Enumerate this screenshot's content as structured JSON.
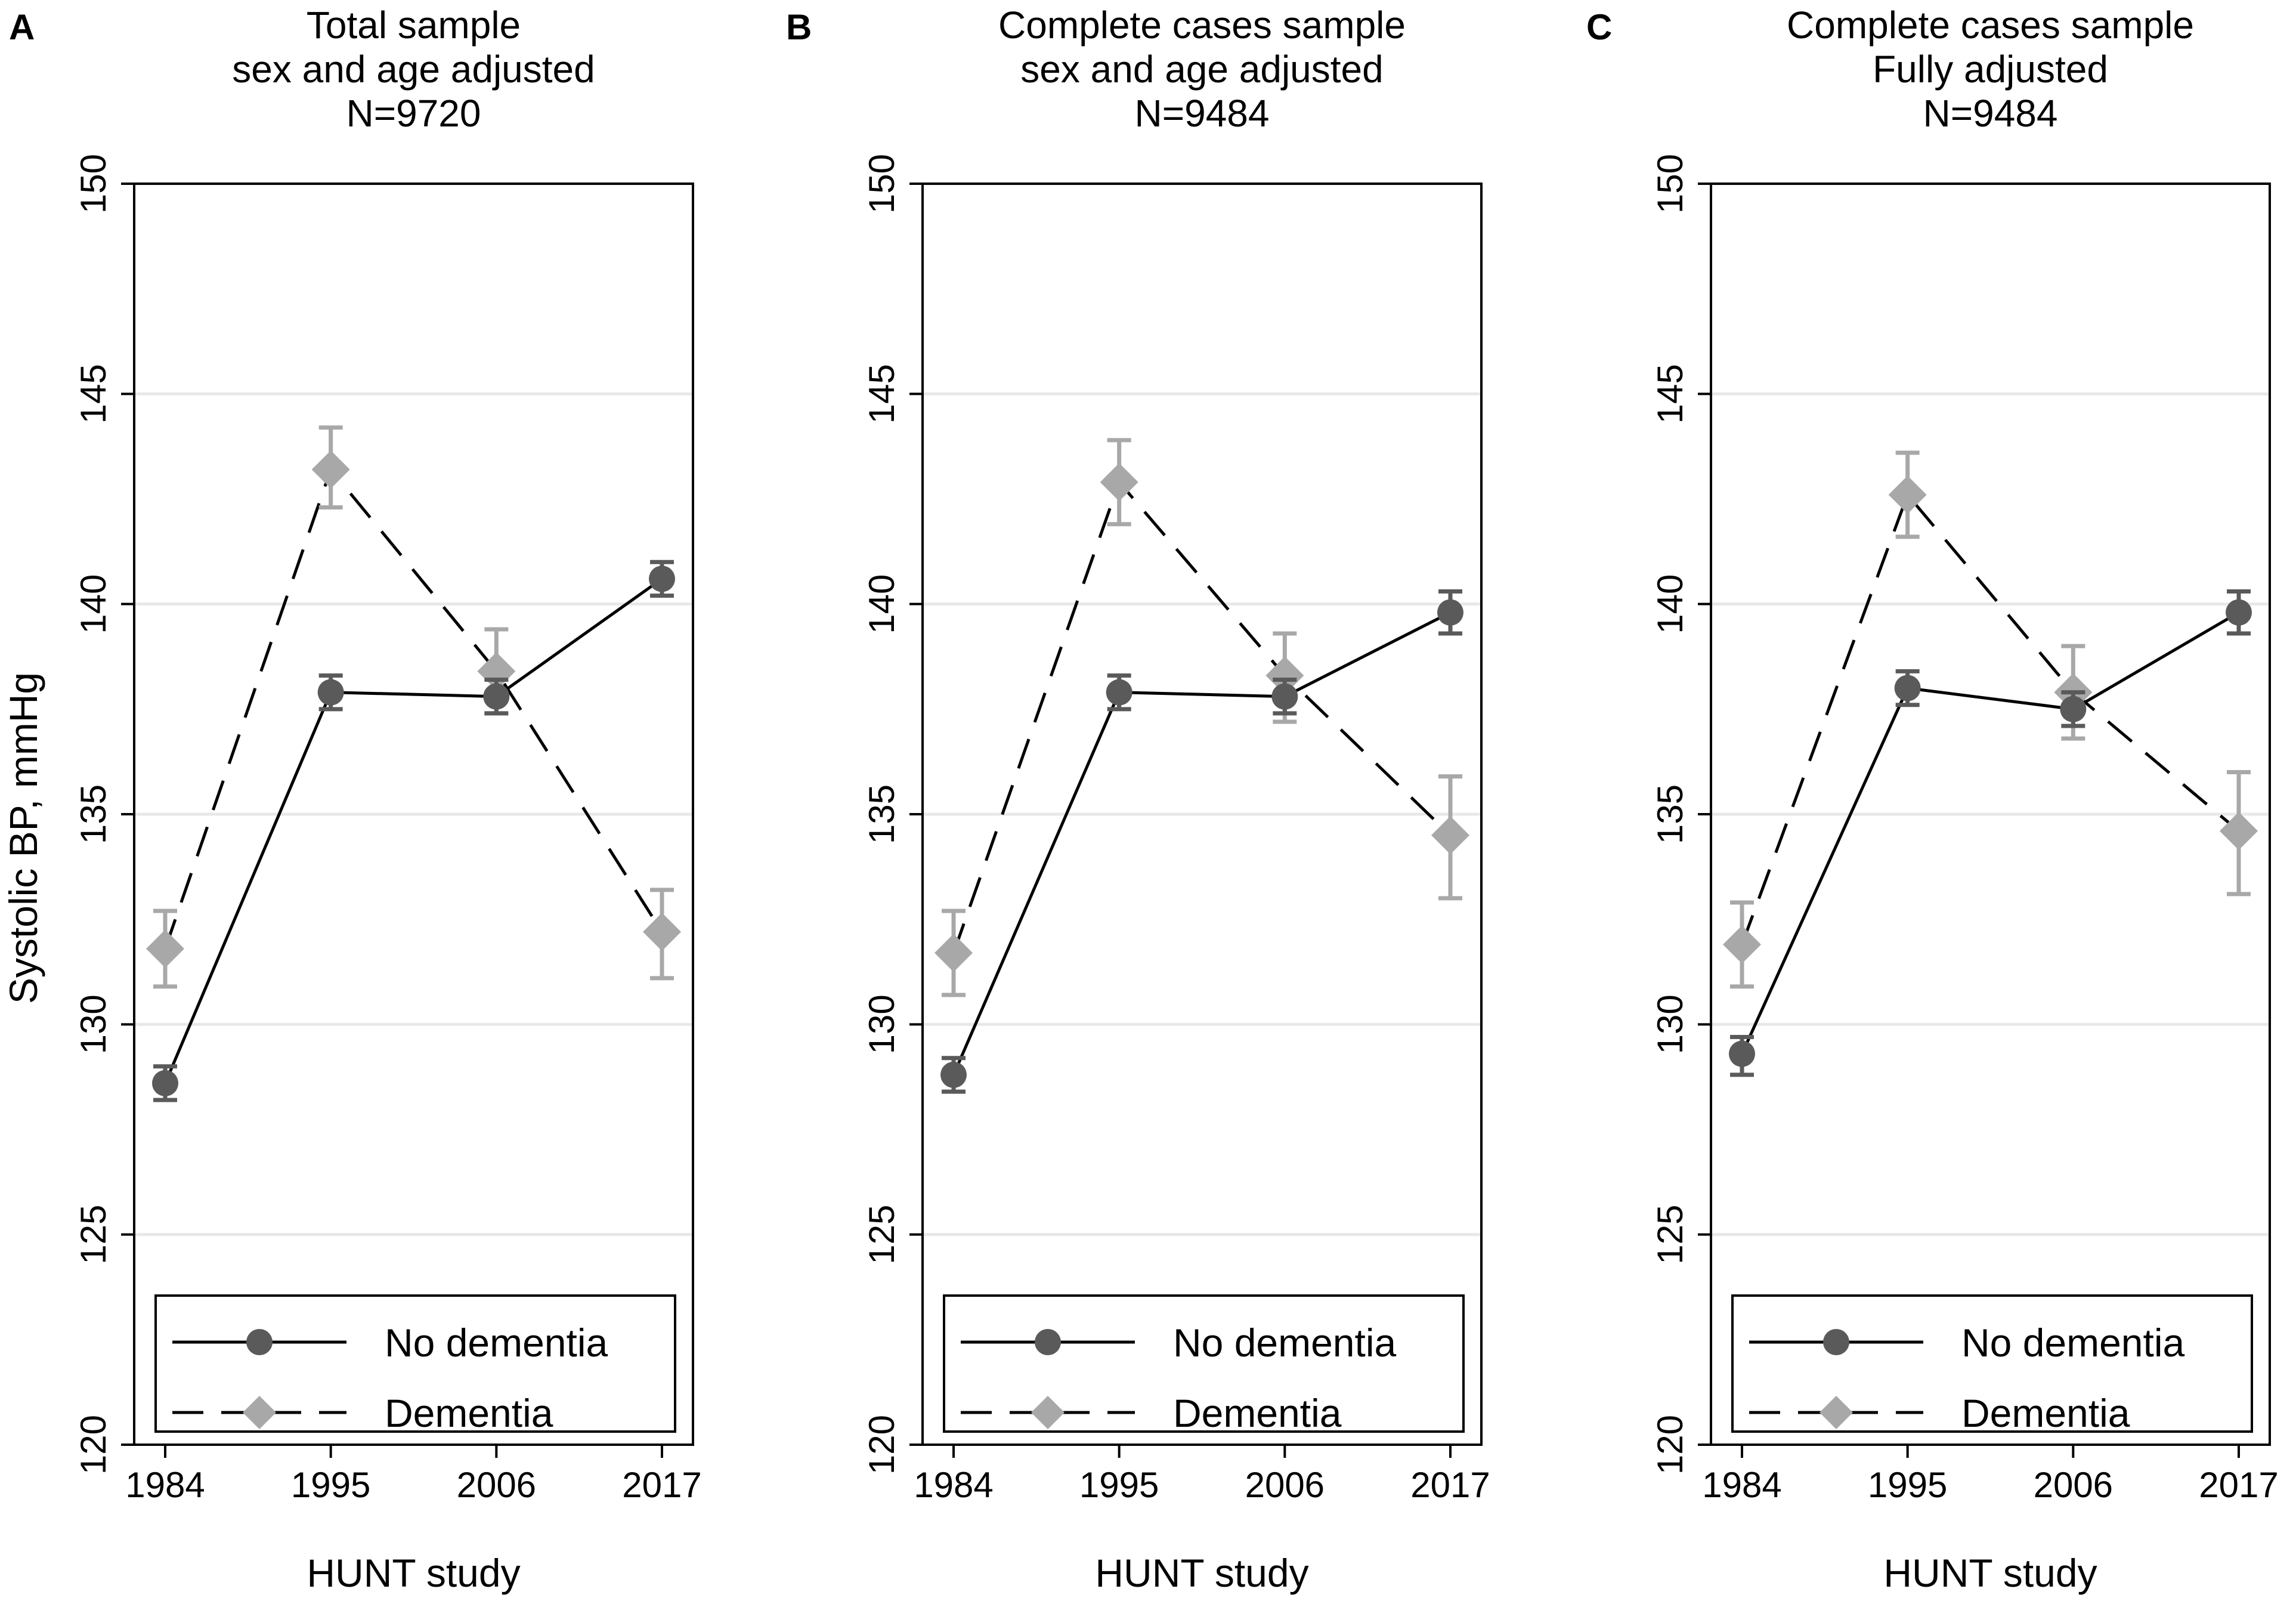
{
  "colors": {
    "no_dementia": "#5a5a5a",
    "dementia": "#a8a8a8",
    "gridline": "#e8e8e8",
    "frame": "#000000",
    "background": "#ffffff"
  },
  "chart_data": [
    {
      "type": "line",
      "panel_label": "A",
      "title": [
        "Total sample",
        "sex and age adjusted",
        "N=9720"
      ],
      "xlabel": "HUNT study",
      "ylabel": "Systolic BP, mmHg",
      "categories": [
        "1984",
        "1995",
        "2006",
        "2017"
      ],
      "ylim": [
        120,
        150
      ],
      "yticks": [
        "120",
        "125",
        "130",
        "135",
        "140",
        "145",
        "150"
      ],
      "grid": true,
      "legend": {
        "position": "bottom",
        "entries": [
          "No dementia",
          "Dementia"
        ]
      },
      "series": [
        {
          "name": "No dementia",
          "marker": "circle",
          "line": "solid",
          "values": [
            128.6,
            137.9,
            137.8,
            140.6
          ],
          "lower": [
            128.2,
            137.5,
            137.4,
            140.2
          ],
          "upper": [
            129.0,
            138.3,
            138.2,
            141.0
          ]
        },
        {
          "name": "Dementia",
          "marker": "diamond",
          "line": "dashed",
          "values": [
            131.8,
            143.2,
            138.4,
            132.2
          ],
          "lower": [
            130.9,
            142.3,
            137.4,
            131.1
          ],
          "upper": [
            132.7,
            144.2,
            139.4,
            133.2
          ]
        }
      ]
    },
    {
      "type": "line",
      "panel_label": "B",
      "title": [
        "Complete cases sample",
        "sex and age adjusted",
        "N=9484"
      ],
      "xlabel": "HUNT study",
      "ylabel": "",
      "categories": [
        "1984",
        "1995",
        "2006",
        "2017"
      ],
      "ylim": [
        120,
        150
      ],
      "yticks": [
        "120",
        "125",
        "130",
        "135",
        "140",
        "145",
        "150"
      ],
      "grid": true,
      "legend": {
        "position": "bottom",
        "entries": [
          "No dementia",
          "Dementia"
        ]
      },
      "series": [
        {
          "name": "No dementia",
          "marker": "circle",
          "line": "solid",
          "values": [
            128.8,
            137.9,
            137.8,
            139.8
          ],
          "lower": [
            128.4,
            137.5,
            137.4,
            139.3
          ],
          "upper": [
            129.2,
            138.3,
            138.2,
            140.3
          ]
        },
        {
          "name": "Dementia",
          "marker": "diamond",
          "line": "dashed",
          "values": [
            131.7,
            142.9,
            138.3,
            134.5
          ],
          "lower": [
            130.7,
            141.9,
            137.2,
            133.0
          ],
          "upper": [
            132.7,
            143.9,
            139.3,
            135.9
          ]
        }
      ]
    },
    {
      "type": "line",
      "panel_label": "C",
      "title": [
        "Complete cases sample",
        "Fully adjusted",
        "N=9484"
      ],
      "xlabel": "HUNT study",
      "ylabel": "",
      "categories": [
        "1984",
        "1995",
        "2006",
        "2017"
      ],
      "ylim": [
        120,
        150
      ],
      "yticks": [
        "120",
        "125",
        "130",
        "135",
        "140",
        "145",
        "150"
      ],
      "grid": true,
      "legend": {
        "position": "bottom",
        "entries": [
          "No dementia",
          "Dementia"
        ]
      },
      "series": [
        {
          "name": "No dementia",
          "marker": "circle",
          "line": "solid",
          "values": [
            129.3,
            138.0,
            137.5,
            139.8
          ],
          "lower": [
            128.8,
            137.6,
            137.1,
            139.3
          ],
          "upper": [
            129.7,
            138.4,
            137.9,
            140.3
          ]
        },
        {
          "name": "Dementia",
          "marker": "diamond",
          "line": "dashed",
          "values": [
            131.9,
            142.6,
            137.9,
            134.6
          ],
          "lower": [
            130.9,
            141.6,
            136.8,
            133.1
          ],
          "upper": [
            132.9,
            143.6,
            139.0,
            136.0
          ]
        }
      ]
    }
  ]
}
